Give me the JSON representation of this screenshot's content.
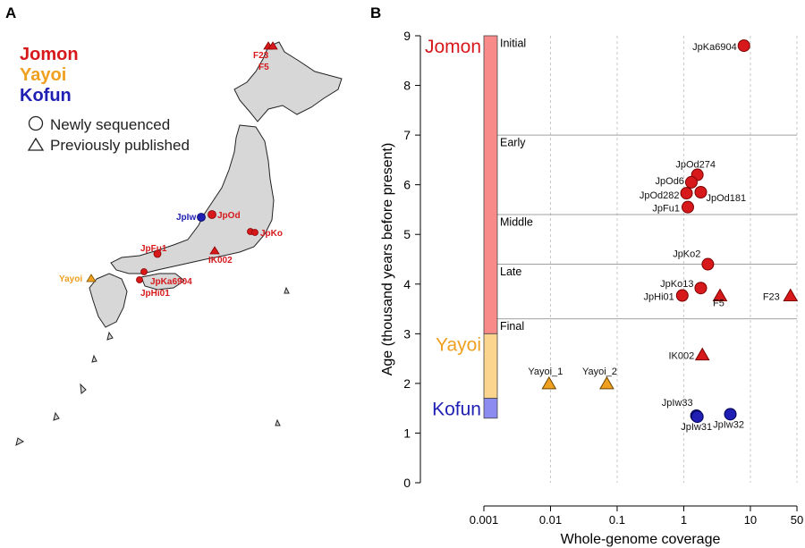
{
  "panel_a": {
    "label": "A",
    "legend": {
      "periods": [
        {
          "name": "Jomon",
          "color": "#d7191c"
        },
        {
          "name": "Yayoi",
          "color": "#f0a020"
        },
        {
          "name": "Kofun",
          "color": "#1f1fb4"
        }
      ],
      "shapes": [
        {
          "shape": "circle",
          "label": "Newly sequenced"
        },
        {
          "shape": "triangle",
          "label": "Previously published"
        }
      ]
    },
    "map_labels": [
      "F23",
      "F5",
      "JpIw",
      "JpOd",
      "JpKo",
      "JpFu1",
      "IK002",
      "Yayoi",
      "JpKa6904",
      "JpHi01"
    ]
  },
  "panel_b": {
    "label": "B"
  },
  "chart_data": {
    "type": "scatter",
    "xlabel": "Whole-genome coverage",
    "ylabel": "Age (thousand years before present)",
    "x_scale": "log",
    "x_ticks": [
      0.001,
      0.01,
      0.1,
      1,
      10,
      50
    ],
    "x_tick_labels": [
      "0.001",
      "0.01",
      "0.1",
      "1",
      "10",
      "50"
    ],
    "ylim": [
      0,
      9
    ],
    "y_ticks": [
      0,
      1,
      2,
      3,
      4,
      5,
      6,
      7,
      8,
      9
    ],
    "period_bars": [
      {
        "name": "Jomon",
        "from": 3.0,
        "to": 9.0,
        "fill": "#f88a8a",
        "label_color": "#d7191c"
      },
      {
        "name": "Yayoi",
        "from": 1.7,
        "to": 3.0,
        "fill": "#fbd48e",
        "label_color": "#f0a020"
      },
      {
        "name": "Kofun",
        "from": 1.3,
        "to": 1.7,
        "fill": "#8c8cf0",
        "label_color": "#1f1fb4"
      }
    ],
    "subperiods": [
      {
        "name": "Initial",
        "label_y": 8.85
      },
      {
        "name": "Early",
        "boundary": 7.0,
        "label_y": 6.85
      },
      {
        "name": "Middle",
        "boundary": 5.4,
        "label_y": 5.25
      },
      {
        "name": "Late",
        "boundary": 4.4,
        "label_y": 4.25
      },
      {
        "name": "Final",
        "boundary": 3.3,
        "label_y": 3.15
      }
    ],
    "points": [
      {
        "name": "JpKa6904",
        "x": 8.0,
        "y": 8.8,
        "shape": "circle",
        "period": "Jomon"
      },
      {
        "name": "JpOd274",
        "x": 1.6,
        "y": 6.2,
        "shape": "circle",
        "period": "Jomon"
      },
      {
        "name": "JpOd6",
        "x": 1.3,
        "y": 6.05,
        "shape": "circle",
        "period": "Jomon"
      },
      {
        "name": "JpOd282",
        "x": 1.1,
        "y": 5.83,
        "shape": "circle",
        "period": "Jomon"
      },
      {
        "name": "JpOd181",
        "x": 1.8,
        "y": 5.85,
        "shape": "circle",
        "period": "Jomon"
      },
      {
        "name": "JpFu1",
        "x": 1.15,
        "y": 5.55,
        "shape": "circle",
        "period": "Jomon"
      },
      {
        "name": "JpKo2",
        "x": 2.3,
        "y": 4.4,
        "shape": "circle",
        "period": "Jomon"
      },
      {
        "name": "JpKo13",
        "x": 1.8,
        "y": 3.92,
        "shape": "circle",
        "period": "Jomon"
      },
      {
        "name": "JpHi01",
        "x": 0.95,
        "y": 3.77,
        "shape": "circle",
        "period": "Jomon"
      },
      {
        "name": "F5",
        "x": 3.5,
        "y": 3.77,
        "shape": "triangle",
        "period": "Jomon"
      },
      {
        "name": "F23",
        "x": 40,
        "y": 3.77,
        "shape": "triangle",
        "period": "Jomon"
      },
      {
        "name": "IK002",
        "x": 1.9,
        "y": 2.58,
        "shape": "triangle",
        "period": "Jomon"
      },
      {
        "name": "Yayoi_1",
        "x": 0.0095,
        "y": 2.0,
        "shape": "triangle",
        "period": "Yayoi"
      },
      {
        "name": "Yayoi_2",
        "x": 0.07,
        "y": 2.0,
        "shape": "triangle",
        "period": "Yayoi"
      },
      {
        "name": "JpIw33",
        "x": 1.55,
        "y": 1.35,
        "shape": "circle",
        "period": "Kofun"
      },
      {
        "name": "JpIw31",
        "x": 1.6,
        "y": 1.33,
        "shape": "circle",
        "period": "Kofun"
      },
      {
        "name": "JpIw32",
        "x": 5.0,
        "y": 1.38,
        "shape": "circle",
        "period": "Kofun"
      }
    ],
    "grid": "vertical-dashed"
  }
}
